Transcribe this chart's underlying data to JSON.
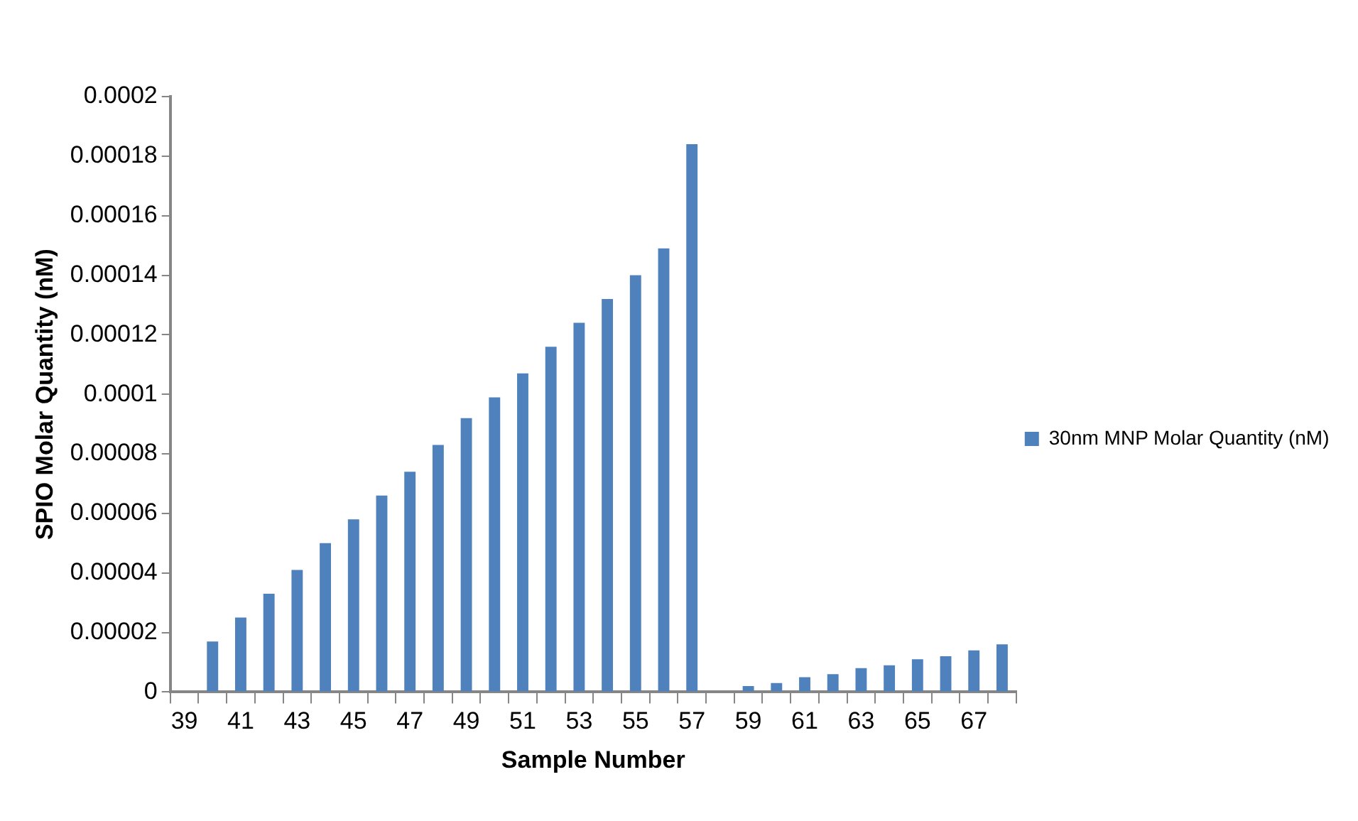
{
  "chart_data": {
    "type": "bar",
    "xlabel": "Sample Number",
    "ylabel": "SPIO Molar Quantity (nM)",
    "categories": [
      "39",
      null,
      "41",
      null,
      "43",
      null,
      "45",
      null,
      "47",
      null,
      "49",
      null,
      "51",
      null,
      "53",
      null,
      "55",
      null,
      "57",
      null,
      "59",
      null,
      "61",
      null,
      "63",
      null,
      "65",
      null,
      "67",
      null
    ],
    "series": [
      {
        "name": "30nm MNP Molar Quantity (nM)",
        "color": "#4f81bd",
        "values": [
          0,
          1.7e-05,
          2.5e-05,
          3.3e-05,
          4.1e-05,
          5e-05,
          5.8e-05,
          6.6e-05,
          7.4e-05,
          8.3e-05,
          9.2e-05,
          9.9e-05,
          0.000107,
          0.000116,
          0.000124,
          0.000132,
          0.00014,
          0.000149,
          0.000184,
          0,
          2e-06,
          3e-06,
          5e-06,
          6e-06,
          8e-06,
          9e-06,
          1.1e-05,
          1.2e-05,
          1.4e-05,
          1.6e-05
        ]
      }
    ],
    "ylim": [
      0,
      0.0002
    ],
    "yticks": [
      0,
      {
        "value": 2e-05,
        "label": "0.00002"
      },
      {
        "value": 4e-05,
        "label": "0.00004"
      },
      {
        "value": 6e-05,
        "label": "0.00006"
      },
      {
        "value": 8e-05,
        "label": "0.00008"
      },
      {
        "value": 0.0001,
        "label": "0.0001"
      },
      {
        "value": 0.00012,
        "label": "0.00012"
      },
      {
        "value": 0.00014,
        "label": "0.00014"
      },
      {
        "value": 0.00016,
        "label": "0.00016"
      },
      {
        "value": 0.00018,
        "label": "0.00018"
      },
      {
        "value": 0.0002,
        "label": "0.0002"
      }
    ],
    "grid": false,
    "legend": "right"
  }
}
